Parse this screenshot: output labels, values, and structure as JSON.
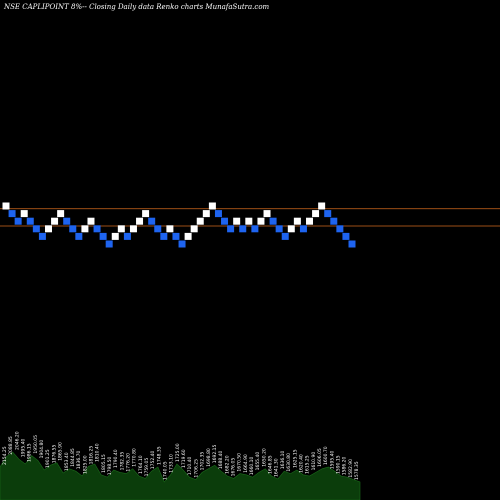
{
  "header": {
    "title": "NSE CAPLIPOINT 8%-- Closing Daily data Renko charts MunafaSutra.com"
  },
  "colors": {
    "up": "#ffffff",
    "down": "#1e64f0",
    "line": "#d2691e",
    "volume": "#0b3d0b",
    "background": "#000000"
  },
  "chart_data": {
    "type": "renko",
    "brick_size_pct": 8,
    "reference_lines": [
      2300,
      2050
    ],
    "bricks": [
      {
        "i": 0,
        "dir": "up",
        "price": 2340
      },
      {
        "i": 1,
        "dir": "down",
        "price": 2230
      },
      {
        "i": 2,
        "dir": "down",
        "price": 2120
      },
      {
        "i": 3,
        "dir": "up",
        "price": 2230
      },
      {
        "i": 4,
        "dir": "down",
        "price": 2120
      },
      {
        "i": 5,
        "dir": "down",
        "price": 2010
      },
      {
        "i": 6,
        "dir": "down",
        "price": 1900
      },
      {
        "i": 7,
        "dir": "up",
        "price": 2010
      },
      {
        "i": 8,
        "dir": "up",
        "price": 2120
      },
      {
        "i": 9,
        "dir": "up",
        "price": 2230
      },
      {
        "i": 10,
        "dir": "down",
        "price": 2120
      },
      {
        "i": 11,
        "dir": "down",
        "price": 2010
      },
      {
        "i": 12,
        "dir": "down",
        "price": 1900
      },
      {
        "i": 13,
        "dir": "up",
        "price": 2010
      },
      {
        "i": 14,
        "dir": "up",
        "price": 2120
      },
      {
        "i": 15,
        "dir": "down",
        "price": 2010
      },
      {
        "i": 16,
        "dir": "down",
        "price": 1900
      },
      {
        "i": 17,
        "dir": "down",
        "price": 1790
      },
      {
        "i": 18,
        "dir": "up",
        "price": 1900
      },
      {
        "i": 19,
        "dir": "up",
        "price": 2010
      },
      {
        "i": 20,
        "dir": "down",
        "price": 1900
      },
      {
        "i": 21,
        "dir": "up",
        "price": 2010
      },
      {
        "i": 22,
        "dir": "up",
        "price": 2120
      },
      {
        "i": 23,
        "dir": "up",
        "price": 2230
      },
      {
        "i": 24,
        "dir": "down",
        "price": 2120
      },
      {
        "i": 25,
        "dir": "down",
        "price": 2010
      },
      {
        "i": 26,
        "dir": "down",
        "price": 1900
      },
      {
        "i": 27,
        "dir": "up",
        "price": 2010
      },
      {
        "i": 28,
        "dir": "down",
        "price": 1900
      },
      {
        "i": 29,
        "dir": "down",
        "price": 1790
      },
      {
        "i": 30,
        "dir": "up",
        "price": 1900
      },
      {
        "i": 31,
        "dir": "up",
        "price": 2010
      },
      {
        "i": 32,
        "dir": "up",
        "price": 2120
      },
      {
        "i": 33,
        "dir": "up",
        "price": 2230
      },
      {
        "i": 34,
        "dir": "up",
        "price": 2340
      },
      {
        "i": 35,
        "dir": "down",
        "price": 2230
      },
      {
        "i": 36,
        "dir": "down",
        "price": 2120
      },
      {
        "i": 37,
        "dir": "down",
        "price": 2010
      },
      {
        "i": 38,
        "dir": "up",
        "price": 2120
      },
      {
        "i": 39,
        "dir": "down",
        "price": 2010
      },
      {
        "i": 40,
        "dir": "up",
        "price": 2120
      },
      {
        "i": 41,
        "dir": "down",
        "price": 2010
      },
      {
        "i": 42,
        "dir": "up",
        "price": 2120
      },
      {
        "i": 43,
        "dir": "up",
        "price": 2230
      },
      {
        "i": 44,
        "dir": "down",
        "price": 2120
      },
      {
        "i": 45,
        "dir": "down",
        "price": 2010
      },
      {
        "i": 46,
        "dir": "down",
        "price": 1900
      },
      {
        "i": 47,
        "dir": "up",
        "price": 2010
      },
      {
        "i": 48,
        "dir": "up",
        "price": 2120
      },
      {
        "i": 49,
        "dir": "down",
        "price": 2010
      },
      {
        "i": 50,
        "dir": "up",
        "price": 2120
      },
      {
        "i": 51,
        "dir": "up",
        "price": 2230
      },
      {
        "i": 52,
        "dir": "up",
        "price": 2340
      },
      {
        "i": 53,
        "dir": "down",
        "price": 2230
      },
      {
        "i": 54,
        "dir": "down",
        "price": 2120
      },
      {
        "i": 55,
        "dir": "down",
        "price": 2010
      },
      {
        "i": 56,
        "dir": "down",
        "price": 1900
      },
      {
        "i": 57,
        "dir": "down",
        "price": 1790
      }
    ],
    "volume_labels": [
      "2154.25",
      "2088.85",
      "2046.20",
      "1995.40",
      "1986.15",
      "1950.05",
      "1904.80",
      "1901.25",
      "1876.55",
      "1865.90",
      "1853.40",
      "1844.85",
      "1836.70",
      "1825.00",
      "1816.25",
      "1810.40",
      "1805.15",
      "1798.50",
      "1790.40",
      "1782.35",
      "1776.20",
      "1770.80",
      "1764.10",
      "1759.05",
      "1752.40",
      "1748.35",
      "1740.05",
      "1733.10",
      "1725.00",
      "1719.60",
      "1710.40",
      "1706.25",
      "1702.35",
      "1698.80",
      "1692.15",
      "1688.40",
      "1682.20",
      "1676.05",
      "1670.50",
      "1664.90",
      "1660.10",
      "1655.40",
      "1650.20",
      "1646.85",
      "1641.30",
      "1636.10",
      "1630.80",
      "1625.15",
      "1620.40",
      "1615.25",
      "1610.90",
      "1606.05",
      "1600.70",
      "1595.40",
      "1590.15",
      "1586.20",
      "1582.90",
      "1578.35"
    ],
    "volumes": [
      0.55,
      0.72,
      0.8,
      0.68,
      0.6,
      0.74,
      0.66,
      0.5,
      0.58,
      0.62,
      0.45,
      0.52,
      0.48,
      0.4,
      0.56,
      0.6,
      0.42,
      0.38,
      0.5,
      0.46,
      0.44,
      0.52,
      0.4,
      0.36,
      0.48,
      0.55,
      0.3,
      0.42,
      0.6,
      0.5,
      0.38,
      0.34,
      0.46,
      0.52,
      0.58,
      0.48,
      0.4,
      0.36,
      0.44,
      0.42,
      0.38,
      0.46,
      0.52,
      0.4,
      0.35,
      0.48,
      0.44,
      0.5,
      0.42,
      0.4,
      0.46,
      0.52,
      0.55,
      0.48,
      0.4,
      0.38,
      0.34,
      0.3
    ]
  }
}
